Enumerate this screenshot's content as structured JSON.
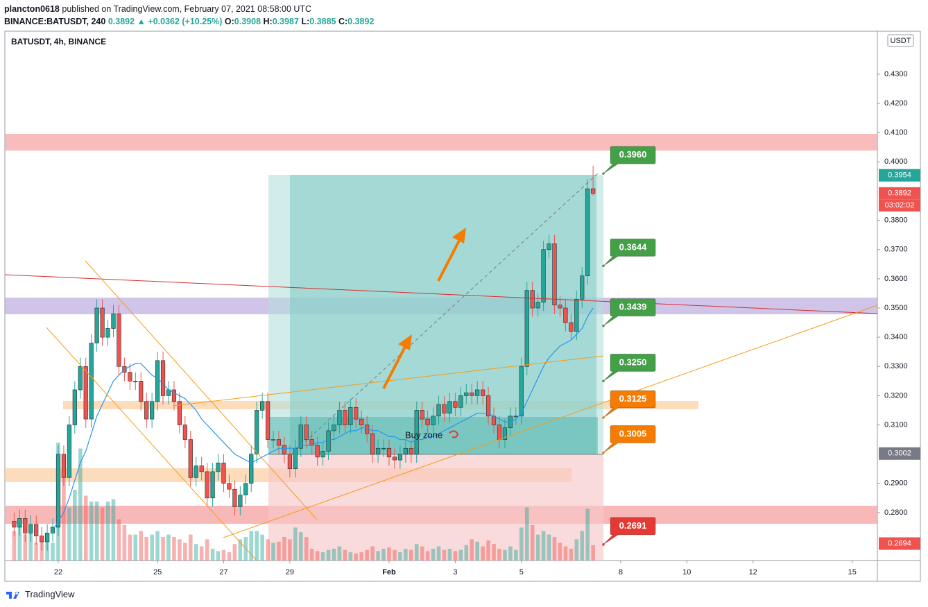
{
  "header": {
    "author": "plancton0618",
    "published": "published on TradingView.com, February 07, 2021 08:58:00 UTC",
    "symbol": "BINANCE:BATUSDT,",
    "change": "▲ +0.0362 (+10.25%)",
    "o": "O:",
    "h": "H:",
    "l": "L:",
    "c": "C:"
  },
  "footer": "TradingView",
  "chart_data": {
    "type": "candlestick",
    "title": "BATUSDT, 4h, BINANCE",
    "currency": "USDT",
    "interval": 240,
    "start": "2021-01-20T16:00Z",
    "xlim": [
      "2021-01-20T09:16Z",
      "2021-02-15T18:13Z"
    ],
    "xticks": [
      {
        "value": "2021-01-22",
        "label": "22"
      },
      {
        "value": "2021-01-25",
        "label": "25"
      },
      {
        "value": "2021-01-27",
        "label": "27"
      },
      {
        "value": "2021-01-29",
        "label": "29"
      },
      {
        "value": "2021-02-01",
        "label": "Feb"
      },
      {
        "value": "2021-02-03",
        "label": "3"
      },
      {
        "value": "2021-02-05",
        "label": "5"
      },
      {
        "value": "2021-02-08",
        "label": "8"
      },
      {
        "value": "2021-02-10",
        "label": "10"
      },
      {
        "value": "2021-02-12",
        "label": "12"
      },
      {
        "value": "2021-02-15",
        "label": "15"
      }
    ],
    "ylim": [
      0.2636,
      0.4447
    ],
    "yticks": [
      {
        "value": 0.43,
        "label": "0.4300"
      },
      {
        "value": 0.42,
        "label": "0.4200"
      },
      {
        "value": 0.41,
        "label": "0.4100"
      },
      {
        "value": 0.4,
        "label": "0.4000"
      },
      {
        "value": 0.38,
        "label": "0.3800"
      },
      {
        "value": 0.37,
        "label": "0.3700"
      },
      {
        "value": 0.36,
        "label": "0.3600"
      },
      {
        "value": 0.35,
        "label": "0.3500"
      },
      {
        "value": 0.34,
        "label": "0.3400"
      },
      {
        "value": 0.33,
        "label": "0.3300"
      },
      {
        "value": 0.32,
        "label": "0.3200"
      },
      {
        "value": 0.31,
        "label": "0.3100"
      },
      {
        "value": 0.29,
        "label": "0.2900"
      },
      {
        "value": 0.28,
        "label": "0.2800"
      }
    ],
    "grid": false,
    "up_color": "#26a69a",
    "down_color": "#ef5350",
    "ma_color": "#2196f3",
    "open": [
      0.277,
      0.275,
      0.278,
      0.273,
      0.276,
      0.272,
      0.27,
      0.273,
      0.275,
      0.3,
      0.292,
      0.31,
      0.322,
      0.33,
      0.312,
      0.338,
      0.35,
      0.34,
      0.343,
      0.348,
      0.33,
      0.328,
      0.325,
      0.325,
      0.318,
      0.312,
      0.318,
      0.332,
      0.32,
      0.322,
      0.318,
      0.31,
      0.305,
      0.292,
      0.296,
      0.294,
      0.285,
      0.294,
      0.297,
      0.29,
      0.288,
      0.282,
      0.286,
      0.29,
      0.3,
      0.315,
      0.318,
      0.305,
      0.305,
      0.303,
      0.3,
      0.295,
      0.302,
      0.31,
      0.305,
      0.303,
      0.299,
      0.301,
      0.308,
      0.31,
      0.315,
      0.31,
      0.316,
      0.312,
      0.31,
      0.307,
      0.3,
      0.302,
      0.302,
      0.299,
      0.298,
      0.3,
      0.302,
      0.3,
      0.315,
      0.312,
      0.31,
      0.313,
      0.317,
      0.314,
      0.318,
      0.316,
      0.32,
      0.321,
      0.32,
      0.322,
      0.32,
      0.313,
      0.31,
      0.305,
      0.309,
      0.313,
      0.313,
      0.33,
      0.356,
      0.35,
      0.352,
      0.37,
      0.372,
      0.351,
      0.35,
      0.345,
      0.342,
      0.353,
      0.361,
      0.3908
    ],
    "high": [
      0.28,
      0.281,
      0.281,
      0.279,
      0.279,
      0.275,
      0.276,
      0.278,
      0.303,
      0.303,
      0.313,
      0.325,
      0.333,
      0.333,
      0.341,
      0.353,
      0.353,
      0.346,
      0.351,
      0.351,
      0.333,
      0.331,
      0.328,
      0.328,
      0.321,
      0.321,
      0.335,
      0.335,
      0.325,
      0.325,
      0.321,
      0.313,
      0.308,
      0.299,
      0.299,
      0.297,
      0.297,
      0.3,
      0.3,
      0.293,
      0.291,
      0.289,
      0.293,
      0.303,
      0.318,
      0.321,
      0.321,
      0.308,
      0.308,
      0.306,
      0.303,
      0.305,
      0.313,
      0.313,
      0.308,
      0.306,
      0.304,
      0.311,
      0.313,
      0.318,
      0.318,
      0.319,
      0.319,
      0.315,
      0.313,
      0.31,
      0.305,
      0.305,
      0.305,
      0.302,
      0.303,
      0.305,
      0.305,
      0.318,
      0.318,
      0.315,
      0.316,
      0.32,
      0.32,
      0.321,
      0.321,
      0.323,
      0.324,
      0.324,
      0.325,
      0.325,
      0.323,
      0.316,
      0.313,
      0.312,
      0.316,
      0.316,
      0.333,
      0.359,
      0.359,
      0.355,
      0.373,
      0.375,
      0.375,
      0.354,
      0.353,
      0.348,
      0.356,
      0.364,
      0.394,
      0.3987
    ],
    "low": [
      0.272,
      0.272,
      0.27,
      0.27,
      0.269,
      0.267,
      0.267,
      0.27,
      0.272,
      0.289,
      0.289,
      0.307,
      0.319,
      0.309,
      0.309,
      0.335,
      0.337,
      0.337,
      0.34,
      0.327,
      0.325,
      0.322,
      0.322,
      0.315,
      0.309,
      0.309,
      0.315,
      0.317,
      0.317,
      0.315,
      0.307,
      0.302,
      0.289,
      0.289,
      0.291,
      0.282,
      0.282,
      0.291,
      0.287,
      0.285,
      0.279,
      0.279,
      0.283,
      0.287,
      0.297,
      0.312,
      0.302,
      0.302,
      0.3,
      0.297,
      0.292,
      0.292,
      0.299,
      0.302,
      0.3,
      0.296,
      0.296,
      0.298,
      0.305,
      0.307,
      0.307,
      0.307,
      0.309,
      0.307,
      0.304,
      0.297,
      0.297,
      0.299,
      0.296,
      0.295,
      0.295,
      0.297,
      0.297,
      0.297,
      0.309,
      0.307,
      0.307,
      0.31,
      0.311,
      0.311,
      0.313,
      0.313,
      0.317,
      0.317,
      0.317,
      0.317,
      0.31,
      0.307,
      0.302,
      0.302,
      0.306,
      0.31,
      0.31,
      0.327,
      0.347,
      0.347,
      0.349,
      0.367,
      0.348,
      0.347,
      0.342,
      0.339,
      0.339,
      0.35,
      0.358,
      0.3885
    ],
    "close": [
      0.275,
      0.278,
      0.273,
      0.276,
      0.272,
      0.27,
      0.273,
      0.275,
      0.3,
      0.292,
      0.31,
      0.322,
      0.33,
      0.312,
      0.338,
      0.35,
      0.34,
      0.343,
      0.348,
      0.33,
      0.328,
      0.325,
      0.325,
      0.318,
      0.312,
      0.318,
      0.332,
      0.32,
      0.322,
      0.318,
      0.31,
      0.305,
      0.292,
      0.296,
      0.294,
      0.285,
      0.294,
      0.297,
      0.29,
      0.288,
      0.282,
      0.286,
      0.29,
      0.3,
      0.315,
      0.318,
      0.305,
      0.305,
      0.303,
      0.3,
      0.295,
      0.302,
      0.31,
      0.305,
      0.303,
      0.299,
      0.301,
      0.308,
      0.31,
      0.315,
      0.31,
      0.316,
      0.312,
      0.31,
      0.307,
      0.3,
      0.302,
      0.302,
      0.299,
      0.298,
      0.3,
      0.302,
      0.3,
      0.315,
      0.312,
      0.31,
      0.313,
      0.317,
      0.314,
      0.318,
      0.316,
      0.32,
      0.321,
      0.32,
      0.322,
      0.32,
      0.313,
      0.31,
      0.305,
      0.309,
      0.313,
      0.313,
      0.33,
      0.356,
      0.35,
      0.352,
      0.37,
      0.372,
      0.351,
      0.35,
      0.345,
      0.342,
      0.353,
      0.361,
      0.3908,
      0.3892
    ],
    "volume": [
      25,
      35,
      22,
      28,
      15,
      18,
      20,
      15,
      100,
      70,
      45,
      60,
      95,
      55,
      50,
      50,
      45,
      50,
      52,
      35,
      30,
      22,
      22,
      25,
      20,
      22,
      25,
      20,
      22,
      20,
      18,
      15,
      22,
      14,
      12,
      18,
      10,
      8,
      9,
      7,
      14,
      18,
      20,
      25,
      25,
      22,
      18,
      15,
      16,
      20,
      18,
      28,
      24,
      20,
      10,
      8,
      7,
      9,
      10,
      12,
      9,
      7,
      6,
      7,
      9,
      12,
      8,
      10,
      11,
      9,
      7,
      10,
      9,
      14,
      12,
      8,
      10,
      12,
      9,
      10,
      8,
      9,
      13,
      18,
      16,
      12,
      17,
      14,
      10,
      9,
      12,
      9,
      28,
      45,
      30,
      22,
      25,
      22,
      20,
      15,
      12,
      10,
      18,
      25,
      44,
      13
    ],
    "ma": [
      null,
      null,
      null,
      null,
      null,
      null,
      null,
      0.274,
      0.277,
      0.28,
      0.285,
      0.291,
      0.297,
      0.301,
      0.307,
      0.313,
      0.317,
      0.321,
      0.325,
      0.327,
      0.329,
      0.33,
      0.331,
      0.331,
      0.329,
      0.327,
      0.326,
      0.324,
      0.322,
      0.321,
      0.32,
      0.319,
      0.317,
      0.315,
      0.312,
      0.31,
      0.308,
      0.306,
      0.304,
      0.302,
      0.3,
      0.299,
      0.298,
      0.297,
      0.298,
      0.299,
      0.3,
      0.301,
      0.302,
      0.302,
      0.302,
      0.302,
      0.303,
      0.303,
      0.303,
      0.304,
      0.304,
      0.305,
      0.305,
      0.306,
      0.307,
      0.308,
      0.308,
      0.309,
      0.309,
      0.308,
      0.308,
      0.307,
      0.306,
      0.306,
      0.305,
      0.305,
      0.304,
      0.305,
      0.305,
      0.306,
      0.306,
      0.307,
      0.308,
      0.309,
      0.31,
      0.311,
      0.312,
      0.313,
      0.314,
      0.314,
      0.314,
      0.313,
      0.312,
      0.311,
      0.311,
      0.312,
      0.314,
      0.318,
      0.322,
      0.326,
      0.33,
      0.333,
      0.335,
      0.337,
      0.338,
      0.339,
      0.341,
      0.343,
      0.347,
      0.35
    ],
    "callouts": [
      {
        "value": 0.396,
        "label": "0.3960",
        "color": "#43a047"
      },
      {
        "value": 0.3644,
        "label": "0.3644",
        "color": "#43a047"
      },
      {
        "value": 0.3439,
        "label": "0.3439",
        "color": "#43a047"
      },
      {
        "value": 0.325,
        "label": "0.3250",
        "color": "#43a047"
      },
      {
        "value": 0.3125,
        "label": "0.3125",
        "color": "#f57c00"
      },
      {
        "value": 0.3005,
        "label": "0.3005",
        "color": "#f57c00"
      },
      {
        "value": 0.2691,
        "label": "0.2691",
        "color": "#e53935"
      }
    ],
    "price_labels": [
      {
        "value": 0.3954,
        "label": "0.3954",
        "color": "#26a69a"
      },
      {
        "value": 0.3892,
        "label": "0.3892",
        "color": "#ef5350"
      },
      {
        "value": 0.3002,
        "label": "0.3002",
        "color": "#787b86"
      },
      {
        "value": 0.2694,
        "label": "0.2694",
        "color": "#ef5350"
      }
    ],
    "countdown": "03:02:02",
    "annotation": "Buy zone"
  }
}
